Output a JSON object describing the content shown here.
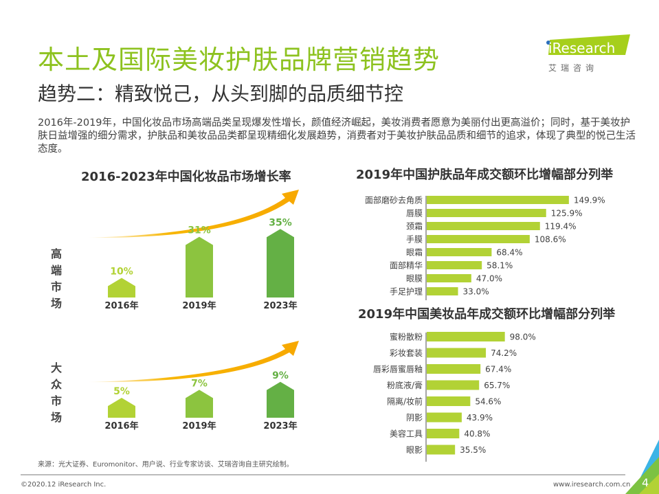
{
  "header": {
    "title": "本土及国际美妆护肤品牌营销趋势",
    "subtitle": "趋势二：精致悦己，从头到脚的品质细节控",
    "paragraph": "2016年-2019年，中国化妆品市场高端品类呈现爆发性增长，颜值经济崛起，美妆消费者愿意为美丽付出更高溢价；同时，基于美妆护肤日益增强的细分需求，护肤品和美妆品品类都呈现精细化发展趋势，消费者对于美妆护肤品品质和细节的追求，体现了典型的悦己生活态度。"
  },
  "logo": {
    "brand": "iResearch",
    "cn": "艾 瑞 咨 询",
    "color": "#a6cf1b",
    "dot_color": "#2a6ebb"
  },
  "colors": {
    "title_green": "#8dc21f",
    "bar_lime": "#b2d235",
    "bar_mid": "#8cc43f",
    "bar_dark": "#64b045",
    "arrow": "#f7b500"
  },
  "chart_data": [
    {
      "type": "bar",
      "title": "2016-2023年中国化妆品市场增长率",
      "panel_label": "高端市场",
      "categories": [
        "2016年",
        "2019年",
        "2023年"
      ],
      "values": [
        10,
        31,
        35
      ],
      "value_labels": [
        "10%",
        "31%",
        "35%"
      ],
      "unit": "%"
    },
    {
      "type": "bar",
      "panel_label": "大众市场",
      "categories": [
        "2016年",
        "2019年",
        "2023年"
      ],
      "values": [
        5,
        7,
        9
      ],
      "value_labels": [
        "5%",
        "7%",
        "9%"
      ],
      "unit": "%"
    },
    {
      "type": "bar",
      "orientation": "horizontal",
      "title": "2019年中国护肤品年成交额环比增幅部分列举",
      "categories": [
        "面部磨砂去角质",
        "唇膜",
        "颈霜",
        "手膜",
        "眼霜",
        "面部精华",
        "眼膜",
        "手足护理"
      ],
      "values": [
        149.9,
        125.9,
        119.4,
        108.6,
        68.4,
        58.1,
        47.0,
        33.0
      ],
      "value_labels": [
        "149.9%",
        "125.9%",
        "119.4%",
        "108.6%",
        "68.4%",
        "58.1%",
        "47.0%",
        "33.0%"
      ]
    },
    {
      "type": "bar",
      "orientation": "horizontal",
      "title": "2019年中国美妆品年成交额环比增幅部分列举",
      "categories": [
        "蜜粉散粉",
        "彩妆套装",
        "唇彩唇蜜唇釉",
        "粉底液/膏",
        "隔离/妆前",
        "阴影",
        "美容工具",
        "眼影"
      ],
      "values": [
        98.0,
        74.2,
        67.4,
        65.7,
        54.6,
        43.9,
        40.8,
        35.5
      ],
      "value_labels": [
        "98.0%",
        "74.2%",
        "67.4%",
        "65.7%",
        "54.6%",
        "43.9%",
        "40.8%",
        "35.5%"
      ]
    }
  ],
  "footer": {
    "source": "来源：光大证券、Euromonitor、用户说、行业专家访谈、艾瑞咨询自主研究绘制。",
    "copyright": "©2020.12 iResearch Inc.",
    "website": "www.iresearch.com.cn",
    "page": "4"
  }
}
